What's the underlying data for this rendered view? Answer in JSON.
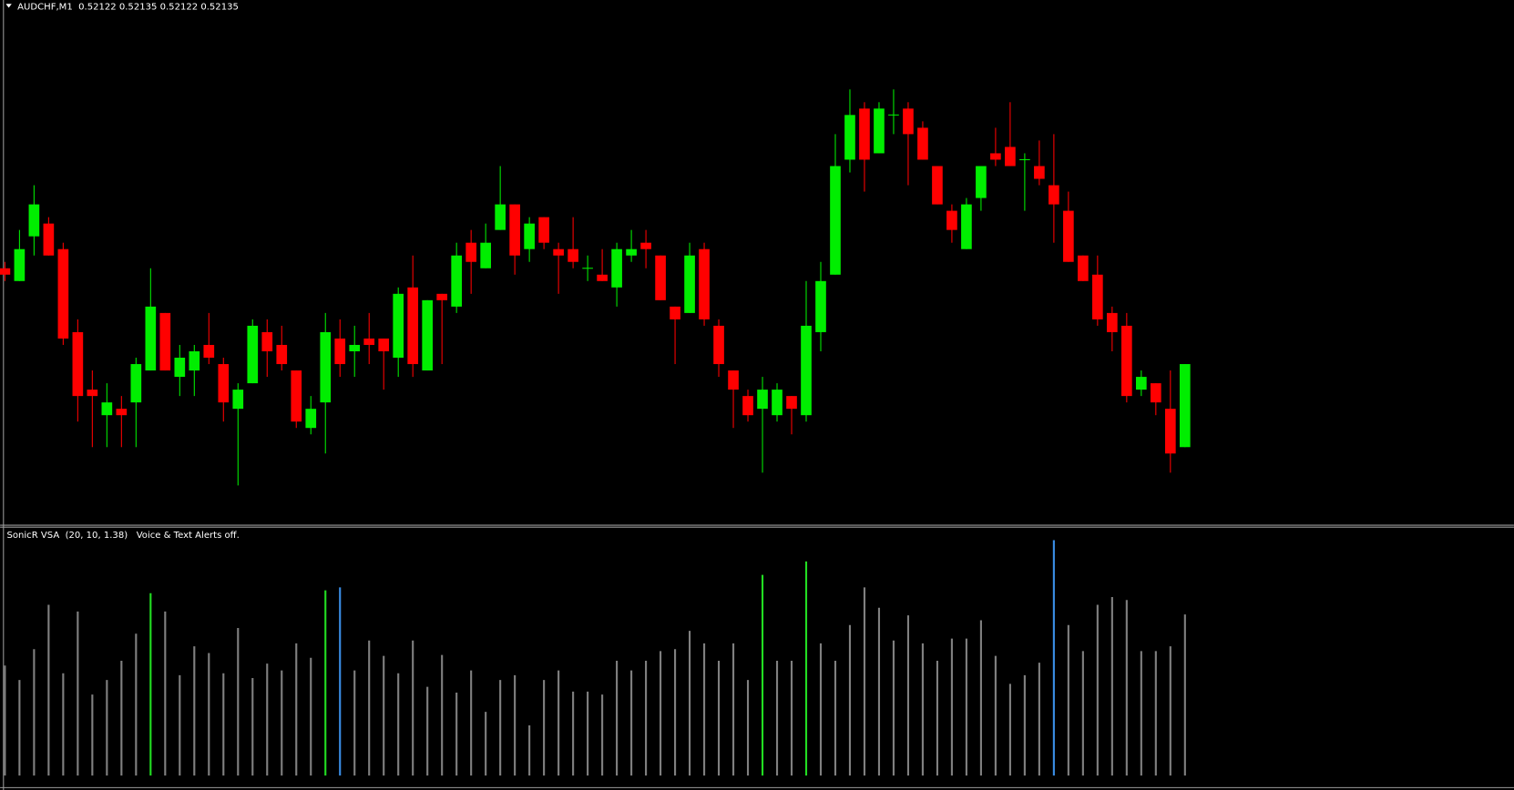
{
  "chart_data": [
    {
      "type": "candlestick",
      "title": "AUDCHF,M1  0.52122 0.52135 0.52122 0.52135",
      "up_color": "#00ee00",
      "down_color": "#ff0000",
      "ylim": [
        0.5211,
        0.52192
      ],
      "open": [
        0.5215,
        0.52148,
        0.52155,
        0.52157,
        0.52153,
        0.5214,
        0.52131,
        0.52127,
        0.52128,
        0.52129,
        0.52134,
        0.52143,
        0.52133,
        0.52134,
        0.52138,
        0.52135,
        0.52128,
        0.52132,
        0.5214,
        0.52138,
        0.52134,
        0.52125,
        0.52129,
        0.52139,
        0.52137,
        0.52139,
        0.52139,
        0.52136,
        0.52147,
        0.52134,
        0.52146,
        0.52144,
        0.52154,
        0.5215,
        0.52156,
        0.5216,
        0.52153,
        0.52158,
        0.52153,
        0.52153,
        0.5215,
        0.52149,
        0.52147,
        0.52152,
        0.52154,
        0.52152,
        0.52144,
        0.52143,
        0.52153,
        0.52141,
        0.52134,
        0.5213,
        0.52128,
        0.52127,
        0.5213,
        0.52127,
        0.5214,
        0.52149,
        0.52167,
        0.52175,
        0.52168,
        0.52174,
        0.52175,
        0.52172,
        0.52166,
        0.52159,
        0.52153,
        0.52161,
        0.52168,
        0.52169,
        0.52167,
        0.52166,
        0.52163,
        0.52159,
        0.52152,
        0.52149,
        0.52143,
        0.52141,
        0.52131,
        0.52132,
        0.52128,
        0.52122
      ],
      "high": [
        0.52151,
        0.52156,
        0.52163,
        0.52158,
        0.52154,
        0.52142,
        0.52134,
        0.52132,
        0.5213,
        0.52136,
        0.5215,
        0.52143,
        0.52138,
        0.52138,
        0.52143,
        0.52136,
        0.52132,
        0.52142,
        0.52142,
        0.52141,
        0.52134,
        0.5213,
        0.52143,
        0.52142,
        0.52141,
        0.52143,
        0.52139,
        0.52147,
        0.52152,
        0.52145,
        0.52146,
        0.52154,
        0.52156,
        0.52157,
        0.52166,
        0.5216,
        0.52158,
        0.52158,
        0.52154,
        0.52158,
        0.52152,
        0.52153,
        0.52154,
        0.52156,
        0.52156,
        0.52152,
        0.52144,
        0.52154,
        0.52154,
        0.52142,
        0.52134,
        0.52131,
        0.52133,
        0.52132,
        0.5213,
        0.52148,
        0.52151,
        0.52171,
        0.52178,
        0.52176,
        0.52176,
        0.52178,
        0.52176,
        0.52173,
        0.52166,
        0.5216,
        0.52161,
        0.52166,
        0.52172,
        0.52176,
        0.52168,
        0.5217,
        0.52171,
        0.52162,
        0.52152,
        0.52152,
        0.52144,
        0.52143,
        0.52134,
        0.52132,
        0.52134,
        0.52135
      ],
      "low": [
        0.52148,
        0.52148,
        0.52152,
        0.52152,
        0.52138,
        0.52126,
        0.52122,
        0.52122,
        0.52122,
        0.52122,
        0.52134,
        0.52134,
        0.5213,
        0.5213,
        0.52135,
        0.52126,
        0.52116,
        0.52132,
        0.52133,
        0.52134,
        0.52125,
        0.52124,
        0.52121,
        0.52133,
        0.52133,
        0.52135,
        0.52131,
        0.52133,
        0.52133,
        0.52134,
        0.52135,
        0.52143,
        0.52146,
        0.5215,
        0.52156,
        0.52149,
        0.52151,
        0.52153,
        0.52146,
        0.5215,
        0.52148,
        0.52148,
        0.52144,
        0.52151,
        0.5215,
        0.52145,
        0.52135,
        0.52143,
        0.52141,
        0.52133,
        0.52125,
        0.52126,
        0.52118,
        0.52126,
        0.52124,
        0.52126,
        0.52137,
        0.52149,
        0.52165,
        0.52162,
        0.52168,
        0.52171,
        0.52163,
        0.52167,
        0.5216,
        0.52154,
        0.52153,
        0.52159,
        0.52166,
        0.52166,
        0.52159,
        0.52163,
        0.52154,
        0.52151,
        0.52148,
        0.52141,
        0.52137,
        0.52129,
        0.5213,
        0.52127,
        0.52118,
        0.52122
      ],
      "close": [
        0.52149,
        0.52153,
        0.5216,
        0.52152,
        0.52139,
        0.5213,
        0.5213,
        0.52129,
        0.52127,
        0.52135,
        0.52144,
        0.52134,
        0.52136,
        0.52137,
        0.52136,
        0.52129,
        0.52131,
        0.52141,
        0.52137,
        0.52135,
        0.52126,
        0.52128,
        0.5214,
        0.52135,
        0.52138,
        0.52138,
        0.52137,
        0.52146,
        0.52135,
        0.52145,
        0.52145,
        0.52152,
        0.52151,
        0.52154,
        0.5216,
        0.52152,
        0.52157,
        0.52154,
        0.52152,
        0.52151,
        0.5215,
        0.52148,
        0.52153,
        0.52153,
        0.52153,
        0.52145,
        0.52142,
        0.52152,
        0.52142,
        0.52135,
        0.52131,
        0.52127,
        0.52131,
        0.52131,
        0.52128,
        0.52141,
        0.52148,
        0.52166,
        0.52174,
        0.52167,
        0.52175,
        0.52174,
        0.52171,
        0.52167,
        0.5216,
        0.52156,
        0.5216,
        0.52166,
        0.52167,
        0.52166,
        0.52167,
        0.52164,
        0.5216,
        0.52151,
        0.52148,
        0.52142,
        0.5214,
        0.5213,
        0.52133,
        0.52129,
        0.52121,
        0.52135
      ]
    },
    {
      "type": "bar",
      "title": "SonicR VSA  (20, 10, 1.38)   Voice & Text Alerts off.",
      "ylim": [
        0,
        256
      ],
      "values": [
        114,
        99,
        131,
        177,
        106,
        170,
        84,
        99,
        119,
        147,
        189,
        170,
        104,
        134,
        127,
        106,
        153,
        101,
        116,
        109,
        137,
        122,
        192,
        195,
        109,
        140,
        124,
        106,
        140,
        92,
        125,
        86,
        109,
        66,
        99,
        104,
        52,
        99,
        109,
        87,
        87,
        84,
        119,
        109,
        119,
        129,
        131,
        150,
        137,
        119,
        137,
        99,
        208,
        119,
        119,
        222,
        137,
        119,
        156,
        195,
        174,
        140,
        166,
        137,
        119,
        142,
        142,
        161,
        124,
        95,
        104,
        117,
        244,
        156,
        129,
        177,
        185,
        182,
        129,
        129,
        134,
        167
      ],
      "colors": [
        "#808080",
        "#808080",
        "#808080",
        "#808080",
        "#808080",
        "#808080",
        "#808080",
        "#808080",
        "#808080",
        "#808080",
        "#22dd22",
        "#808080",
        "#808080",
        "#808080",
        "#808080",
        "#808080",
        "#808080",
        "#808080",
        "#808080",
        "#808080",
        "#808080",
        "#808080",
        "#22dd22",
        "#3a8ee6",
        "#808080",
        "#808080",
        "#808080",
        "#808080",
        "#808080",
        "#808080",
        "#808080",
        "#808080",
        "#808080",
        "#808080",
        "#808080",
        "#808080",
        "#808080",
        "#808080",
        "#808080",
        "#808080",
        "#808080",
        "#808080",
        "#808080",
        "#808080",
        "#808080",
        "#808080",
        "#808080",
        "#808080",
        "#808080",
        "#808080",
        "#808080",
        "#808080",
        "#22dd22",
        "#808080",
        "#808080",
        "#22dd22",
        "#808080",
        "#808080",
        "#808080",
        "#808080",
        "#808080",
        "#808080",
        "#808080",
        "#808080",
        "#808080",
        "#808080",
        "#808080",
        "#808080",
        "#808080",
        "#808080",
        "#808080",
        "#808080",
        "#3a8ee6",
        "#808080",
        "#808080",
        "#808080",
        "#808080",
        "#808080",
        "#808080",
        "#808080",
        "#808080",
        "#808080"
      ]
    }
  ]
}
